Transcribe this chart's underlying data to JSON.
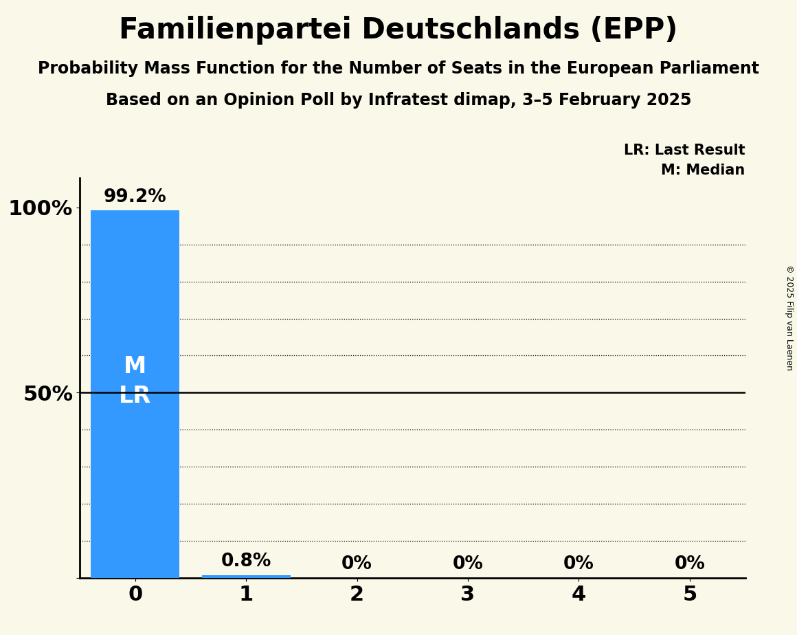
{
  "title": "Familienpartei Deutschlands (EPP)",
  "subtitle1": "Probability Mass Function for the Number of Seats in the European Parliament",
  "subtitle2": "Based on an Opinion Poll by Infratest dimap, 3–5 February 2025",
  "copyright": "© 2025 Filip van Laenen",
  "x_values": [
    0,
    1,
    2,
    3,
    4,
    5
  ],
  "y_values": [
    99.2,
    0.8,
    0.0,
    0.0,
    0.0,
    0.0
  ],
  "bar_labels": [
    "99.2%",
    "0.8%",
    "0%",
    "0%",
    "0%",
    "0%"
  ],
  "bar_color": "#3399ff",
  "background_color": "#faf8e8",
  "median": 0,
  "last_result": 0,
  "legend_lr": "LR: Last Result",
  "legend_m": "M: Median",
  "xlim": [
    -0.5,
    5.5
  ],
  "ylim": [
    0,
    108
  ],
  "title_fontsize": 30,
  "subtitle_fontsize": 17,
  "label_fontsize": 15,
  "tick_fontsize": 22,
  "bar_label_fontsize": 19,
  "inner_label_fontsize": 24,
  "grid_y_values": [
    10,
    20,
    30,
    40,
    60,
    70,
    80,
    90
  ],
  "solid_line_y": 50
}
